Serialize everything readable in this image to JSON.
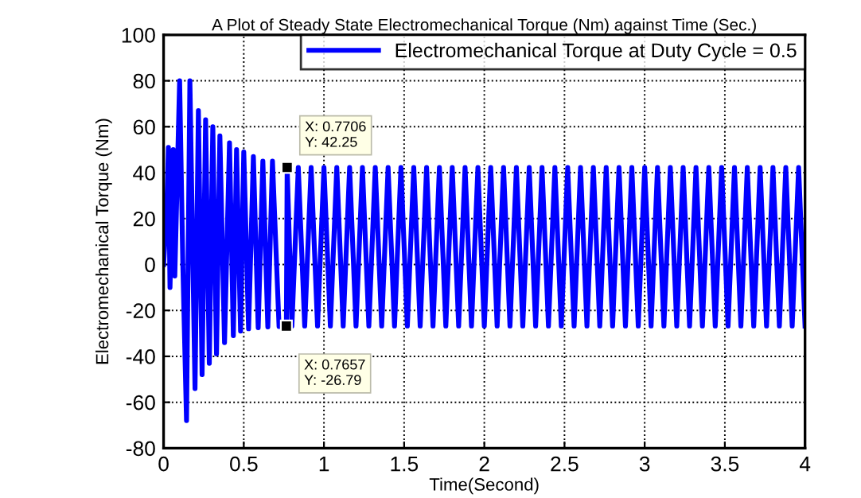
{
  "chart_data": {
    "type": "line",
    "title": "A Plot of Steady State Electromechanical Torque (Nm) against Time (Sec.)",
    "xlabel": "Time(Second)",
    "ylabel": "Electromechanical Torque (Nm)",
    "series": [
      {
        "name": "Electromechanical Torque at Duty Cycle = 0.5",
        "color": "#0000ff",
        "x": [
          0,
          0.02,
          0.03,
          0.04,
          0.06,
          0.07,
          0.1,
          0.12,
          0.143,
          0.164,
          0.196,
          0.217,
          0.24,
          0.262,
          0.285,
          0.307,
          0.33,
          0.351,
          0.38,
          0.411,
          0.435,
          0.455,
          0.48,
          0.5,
          0.53,
          0.56,
          0.59,
          0.619,
          0.65,
          0.679,
          0.72,
          0.7657,
          0.7706,
          0.8,
          0.84,
          0.88,
          0.92,
          0.96,
          1.0,
          1.04,
          1.08,
          1.12,
          1.16,
          1.2,
          1.24,
          1.28,
          1.32,
          1.36,
          1.4,
          1.44,
          1.48,
          1.52,
          1.56,
          1.6,
          1.64,
          1.68,
          1.72,
          1.76,
          1.8,
          1.84,
          1.88,
          1.92,
          1.96,
          2.0,
          2.04,
          2.08,
          2.12,
          2.16,
          2.2,
          2.24,
          2.28,
          2.32,
          2.36,
          2.4,
          2.44,
          2.48,
          2.52,
          2.56,
          2.6,
          2.64,
          2.68,
          2.72,
          2.76,
          2.8,
          2.84,
          2.88,
          2.92,
          2.96,
          3.0,
          3.04,
          3.08,
          3.12,
          3.16,
          3.2,
          3.24,
          3.28,
          3.32,
          3.36,
          3.4,
          3.44,
          3.48,
          3.52,
          3.56,
          3.6,
          3.64,
          3.68,
          3.72,
          3.76,
          3.8,
          3.84,
          3.88,
          3.92,
          3.96,
          4.0
        ],
        "values": [
          0,
          25,
          51,
          -10,
          50,
          -5,
          80,
          0,
          -68,
          80,
          -54,
          67,
          -48,
          63,
          -43,
          60,
          -39,
          56,
          -34,
          53,
          -31,
          50,
          -29,
          49,
          -28,
          47,
          -27.5,
          45,
          -27.2,
          45,
          -27,
          -26.79,
          42.25,
          -26.79,
          42.25,
          -26.79,
          42.25,
          -26.79,
          42.25,
          -26.79,
          42.25,
          -26.79,
          42.25,
          -26.79,
          42.25,
          -26.79,
          42.25,
          -26.79,
          42.25,
          -26.79,
          42.25,
          -26.79,
          42.25,
          -26.79,
          42.25,
          -26.79,
          42.25,
          -26.79,
          42.25,
          -26.79,
          42.25,
          -26.79,
          42.25,
          -26.79,
          42.25,
          -26.79,
          42.25,
          -26.79,
          42.25,
          -26.79,
          42.25,
          -26.79,
          42.25,
          -26.79,
          42.25,
          -26.79,
          42.25,
          -26.79,
          42.25,
          -26.79,
          42.25,
          -26.79,
          42.25,
          -26.79,
          42.25,
          -26.79,
          42.25,
          -26.79,
          42.25,
          -26.79,
          42.25,
          -26.79,
          42.25,
          -26.79,
          42.25,
          -26.79,
          42.25,
          -26.79,
          42.25,
          -26.79,
          42.25,
          -26.79,
          42.25,
          -26.79,
          42.25,
          -26.79,
          42.25,
          -26.79,
          42.25,
          -26.79,
          42.25,
          -26.79,
          42.25,
          -26.79
        ]
      }
    ],
    "annotations": [
      {
        "text": "X: 0.7706\nY: 42.25",
        "x": 0.7706,
        "y": 42.25
      },
      {
        "text": "X: 0.7657\nY: -26.79",
        "x": 0.7657,
        "y": -26.79
      }
    ],
    "xlim": [
      0,
      4
    ],
    "ylim": [
      -80,
      100
    ],
    "xticks": [
      0,
      0.5,
      1,
      1.5,
      2,
      2.5,
      3,
      3.5,
      4
    ],
    "yticks": [
      -80,
      -60,
      -40,
      -20,
      0,
      20,
      40,
      60,
      80,
      100
    ],
    "grid": true,
    "legend": "top right",
    "line_style": "solid",
    "marker": "none"
  }
}
